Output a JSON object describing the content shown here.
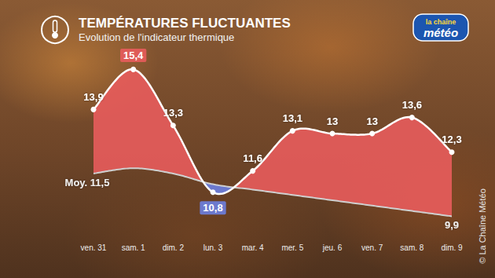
{
  "chart_data": {
    "type": "line",
    "title": "TEMPÉRATURES FLUCTUANTES",
    "subtitle": "Evolution de l'indicateur thermique",
    "annotations": [
      "la chaîne",
      "météo",
      "© La Chaîne Météo"
    ],
    "categories": [
      "ven. 31",
      "sam. 1",
      "dim. 2",
      "lun. 3",
      "mar. 4",
      "mer. 5",
      "jeu. 6",
      "ven. 7",
      "sam. 8",
      "dim. 9"
    ],
    "series": [
      {
        "color": "#ffffff",
        "marker": "circle",
        "values": [
          13.9,
          15.4,
          13.3,
          10.8,
          11.6,
          13.1,
          13,
          13,
          13.6,
          12.3
        ],
        "value_labels": [
          "13,9",
          "15,4",
          "13,3",
          "10,8",
          "11,6",
          "13,1",
          "13",
          "13",
          "13,6",
          "12,3"
        ]
      },
      {
        "color": "#cfcfcf",
        "values": [
          11.5,
          11.7,
          11.5,
          11.1,
          10.9,
          10.7,
          10.5,
          10.3,
          10.1,
          9.9
        ],
        "value_labels": [
          "Moy. 11,5",
          null,
          null,
          null,
          null,
          null,
          null,
          null,
          null,
          "9,9"
        ]
      }
    ],
    "ylim": [
      9,
      16
    ],
    "grid": false,
    "data_labels": true,
    "tick_labels": "x"
  }
}
